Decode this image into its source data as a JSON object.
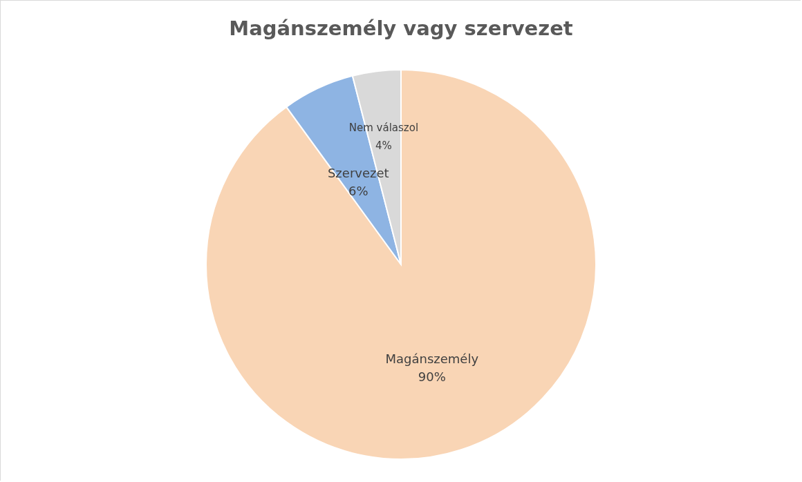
{
  "chart_data": {
    "type": "pie",
    "title": "Magánszemély vagy szervezet",
    "categories": [
      "Magánszemély",
      "Szervezet",
      "Nem válaszol"
    ],
    "values": [
      90,
      6,
      4
    ],
    "colors": [
      "#f9d5b5",
      "#8eb4e3",
      "#d9d9d9"
    ],
    "value_labels": [
      "90%",
      "6%",
      "4%"
    ],
    "legend": false
  }
}
